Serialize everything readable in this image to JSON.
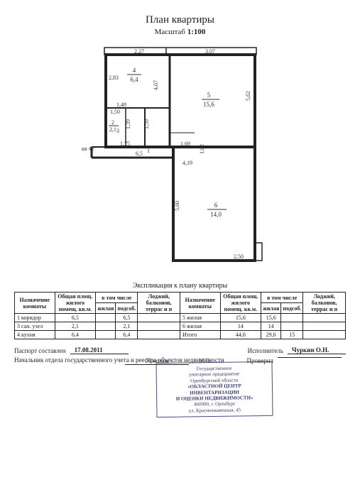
{
  "title": "План квартиры",
  "subtitle_label": "Масштаб",
  "subtitle_value": "1:100",
  "floorplan": {
    "apt_label": "кв 42",
    "rooms": [
      {
        "num": "5",
        "area": "15,6"
      },
      {
        "num": "6",
        "area": "14,0"
      },
      {
        "num": "4",
        "area": "6,4"
      },
      {
        "num": "2",
        "area": "2,1"
      },
      {
        "num": "1",
        "area": "6,5"
      }
    ],
    "dims": {
      "top_left": "2,27",
      "top_right": "3,07",
      "left_1": "2,83",
      "mid_h": "4,67",
      "right_1": "5,62",
      "l_1_48": "1,48",
      "l_1_50": "1,50",
      "l_1_39": "1,39",
      "l_1_59": "1,59",
      "l_1_75": "1,75",
      "l_1_69": "1,69",
      "l_1_02": "1,02",
      "l_4_19": "4,19",
      "v_5_60": "5,60",
      "b_2_50": "2,50",
      "room3": "3"
    }
  },
  "explication_title": "Экспликация к плану квартиры",
  "table": {
    "headers": {
      "room_name": "Назначение комнаты",
      "total_area": "Общая площ. жилого помещ. кв.м.",
      "incl": "в том числе",
      "living": "жилая",
      "aux": "подсоб.",
      "loggia": "Лоджий, балконов, террас и п"
    },
    "left_rows": [
      {
        "name": "1 коридор",
        "total": "6,5",
        "living": "",
        "aux": "6,5",
        "loggia": ""
      },
      {
        "name": "3 сан. узел",
        "total": "2,1",
        "living": "",
        "aux": "2,1",
        "loggia": ""
      },
      {
        "name": "4 кухня",
        "total": "6,4",
        "living": "",
        "aux": "6,4",
        "loggia": ""
      }
    ],
    "right_rows": [
      {
        "name": "5 жилая",
        "total": "15,6",
        "living": "15,6",
        "aux": "",
        "loggia": ""
      },
      {
        "name": "6 жилая",
        "total": "14",
        "living": "14",
        "aux": "",
        "loggia": ""
      },
      {
        "name": "Итого",
        "total": "44,6",
        "living": "29,6",
        "aux": "15",
        "loggia": ""
      }
    ]
  },
  "footer": {
    "passport_label": "Паспорт составлен",
    "passport_date": "17.08.2011",
    "executor_label": "Исполнитель",
    "executor_name": "Чуркин О.Н.",
    "head_label": "Начальник отдела государственного учета и реестра объектов недвижимости",
    "signature": "Усманов",
    "checked_label": "Проверил",
    "mp": "М.П.",
    "stamp": {
      "l1": "Государственное",
      "l2": "унитарное предприятие",
      "l3": "Оренбургской области",
      "l4": "«ОБЛАСТНОЙ ЦЕНТР",
      "l5": "ИНВЕНТАРИЗАЦИИ",
      "l6": "И ОЦЕНКИ НЕДВИЖИМОСТИ»",
      "l7": "460000, г. Оренбург",
      "l8": "ул. Краснознаменная, 45"
    }
  }
}
